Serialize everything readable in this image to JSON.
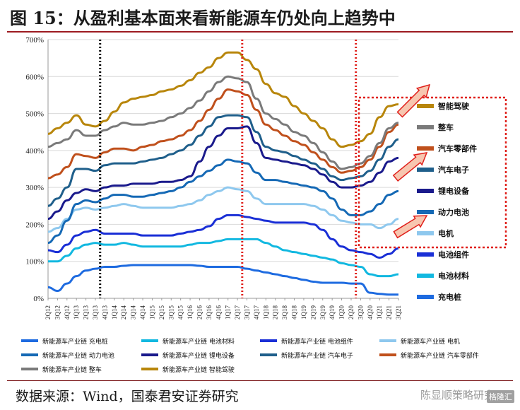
{
  "title": "图 15：从盈利基本面来看新能源车仍处向上趋势中",
  "source": "数据来源：Wind，国泰君安证券研究",
  "watermark": "陈显顺策略研究",
  "watermark_tag": "格隆汇",
  "chart_data": {
    "type": "line",
    "ylim": [
      0,
      700
    ],
    "yticks": [
      "0%",
      "100%",
      "200%",
      "300%",
      "400%",
      "500%",
      "600%",
      "700%"
    ],
    "ytick_values": [
      0,
      100,
      200,
      300,
      400,
      500,
      600,
      700
    ],
    "categories": [
      "2Q12",
      "3Q12",
      "4Q12",
      "1Q13",
      "2Q13",
      "3Q13",
      "4Q13",
      "1Q14",
      "2Q14",
      "3Q14",
      "4Q14",
      "1Q15",
      "2Q15",
      "3Q15",
      "4Q15",
      "1Q16",
      "2Q16",
      "3Q16",
      "4Q16",
      "1Q17",
      "2Q17",
      "3Q17",
      "4Q17",
      "1Q18",
      "2Q18",
      "3Q18",
      "4Q18",
      "1Q19",
      "2Q19",
      "3Q19",
      "4Q19",
      "1Q20",
      "2Q20",
      "3Q20",
      "4Q20",
      "1Q21",
      "2Q21",
      "3Q21"
    ],
    "vlines": [
      {
        "index": 5.5,
        "color": "#000000",
        "style": "dotted"
      },
      {
        "index": 20.5,
        "color": "#e0201b",
        "style": "dotted"
      },
      {
        "index": 32.5,
        "color": "#e0201b",
        "style": "dotted"
      }
    ],
    "series": [
      {
        "name": "智能驾驶",
        "legend": "新能源车产业链 智能驾驶",
        "color": "#b8860b",
        "values": [
          445,
          460,
          475,
          495,
          470,
          465,
          480,
          505,
          530,
          540,
          545,
          550,
          560,
          565,
          575,
          590,
          610,
          625,
          650,
          665,
          665,
          645,
          620,
          580,
          555,
          545,
          520,
          500,
          480,
          460,
          430,
          410,
          415,
          425,
          445,
          490,
          520,
          525
        ]
      },
      {
        "name": "整车",
        "legend": "新能源车产业链 整车",
        "color": "#7a7a7a",
        "values": [
          410,
          420,
          430,
          455,
          440,
          440,
          455,
          465,
          475,
          470,
          470,
          475,
          480,
          490,
          500,
          515,
          535,
          560,
          585,
          600,
          595,
          585,
          540,
          500,
          485,
          470,
          450,
          440,
          420,
          395,
          370,
          350,
          355,
          365,
          385,
          420,
          460,
          475
        ]
      },
      {
        "name": "汽车零部件",
        "legend": "新能源车产业链 汽车零部件",
        "color": "#c0501c",
        "values": [
          325,
          335,
          355,
          390,
          385,
          380,
          395,
          405,
          405,
          400,
          410,
          415,
          425,
          430,
          440,
          455,
          480,
          510,
          540,
          565,
          560,
          550,
          510,
          470,
          455,
          440,
          425,
          415,
          395,
          375,
          355,
          340,
          345,
          355,
          375,
          410,
          450,
          470
        ]
      },
      {
        "name": "汽车电子",
        "legend": "新能源车产业链 汽车电子",
        "color": "#1f5f8b",
        "values": [
          250,
          270,
          300,
          350,
          350,
          345,
          360,
          365,
          365,
          365,
          370,
          375,
          380,
          390,
          400,
          415,
          440,
          465,
          490,
          495,
          495,
          490,
          450,
          410,
          400,
          395,
          385,
          375,
          365,
          350,
          330,
          320,
          325,
          330,
          345,
          375,
          410,
          430
        ]
      },
      {
        "name": "锂电设备",
        "legend": "新能源车产业链 锂电设备",
        "color": "#1a1a8c",
        "values": [
          215,
          235,
          265,
          285,
          295,
          290,
          300,
          305,
          305,
          310,
          310,
          310,
          315,
          315,
          320,
          330,
          370,
          410,
          440,
          460,
          460,
          465,
          420,
          380,
          375,
          370,
          365,
          360,
          350,
          335,
          315,
          300,
          300,
          305,
          315,
          340,
          370,
          380
        ]
      },
      {
        "name": "动力电池",
        "legend": "新能源车产业链 动力电池",
        "color": "#1569b5",
        "values": [
          150,
          170,
          210,
          255,
          265,
          260,
          270,
          280,
          280,
          275,
          275,
          280,
          285,
          290,
          300,
          315,
          330,
          345,
          360,
          375,
          370,
          365,
          340,
          320,
          320,
          315,
          310,
          305,
          300,
          290,
          270,
          240,
          225,
          225,
          235,
          255,
          280,
          290
        ]
      },
      {
        "name": "电机",
        "legend": "新能源车产业链 电机",
        "color": "#8ec8ee",
        "values": [
          180,
          190,
          215,
          240,
          245,
          240,
          245,
          250,
          255,
          250,
          245,
          245,
          245,
          245,
          250,
          255,
          265,
          280,
          290,
          300,
          295,
          290,
          270,
          255,
          255,
          255,
          255,
          255,
          250,
          240,
          225,
          210,
          205,
          200,
          200,
          190,
          200,
          215
        ]
      },
      {
        "name": "电池组件",
        "legend": "新能源车产业链 电池组件",
        "color": "#1a2fd6",
        "values": [
          130,
          125,
          145,
          170,
          180,
          185,
          175,
          175,
          175,
          175,
          170,
          170,
          170,
          170,
          175,
          180,
          185,
          195,
          215,
          225,
          225,
          220,
          215,
          210,
          205,
          205,
          205,
          205,
          200,
          185,
          160,
          140,
          130,
          125,
          120,
          110,
          120,
          135
        ]
      },
      {
        "name": "电池材料",
        "legend": "新能源车产业链 电池材料",
        "color": "#12b8e0",
        "values": [
          100,
          100,
          115,
          135,
          145,
          150,
          145,
          145,
          150,
          145,
          140,
          140,
          140,
          140,
          140,
          145,
          150,
          150,
          155,
          160,
          160,
          160,
          160,
          150,
          140,
          130,
          125,
          120,
          115,
          110,
          105,
          95,
          90,
          85,
          65,
          60,
          60,
          65
        ]
      },
      {
        "name": "充电桩",
        "legend": "新能源车产业链 充电桩",
        "color": "#1e6be0",
        "values": [
          30,
          20,
          40,
          60,
          75,
          80,
          85,
          85,
          88,
          90,
          90,
          90,
          90,
          90,
          90,
          90,
          88,
          85,
          85,
          85,
          85,
          80,
          75,
          70,
          65,
          60,
          55,
          50,
          45,
          42,
          42,
          42,
          40,
          40,
          15,
          12,
          10,
          10
        ]
      }
    ]
  }
}
